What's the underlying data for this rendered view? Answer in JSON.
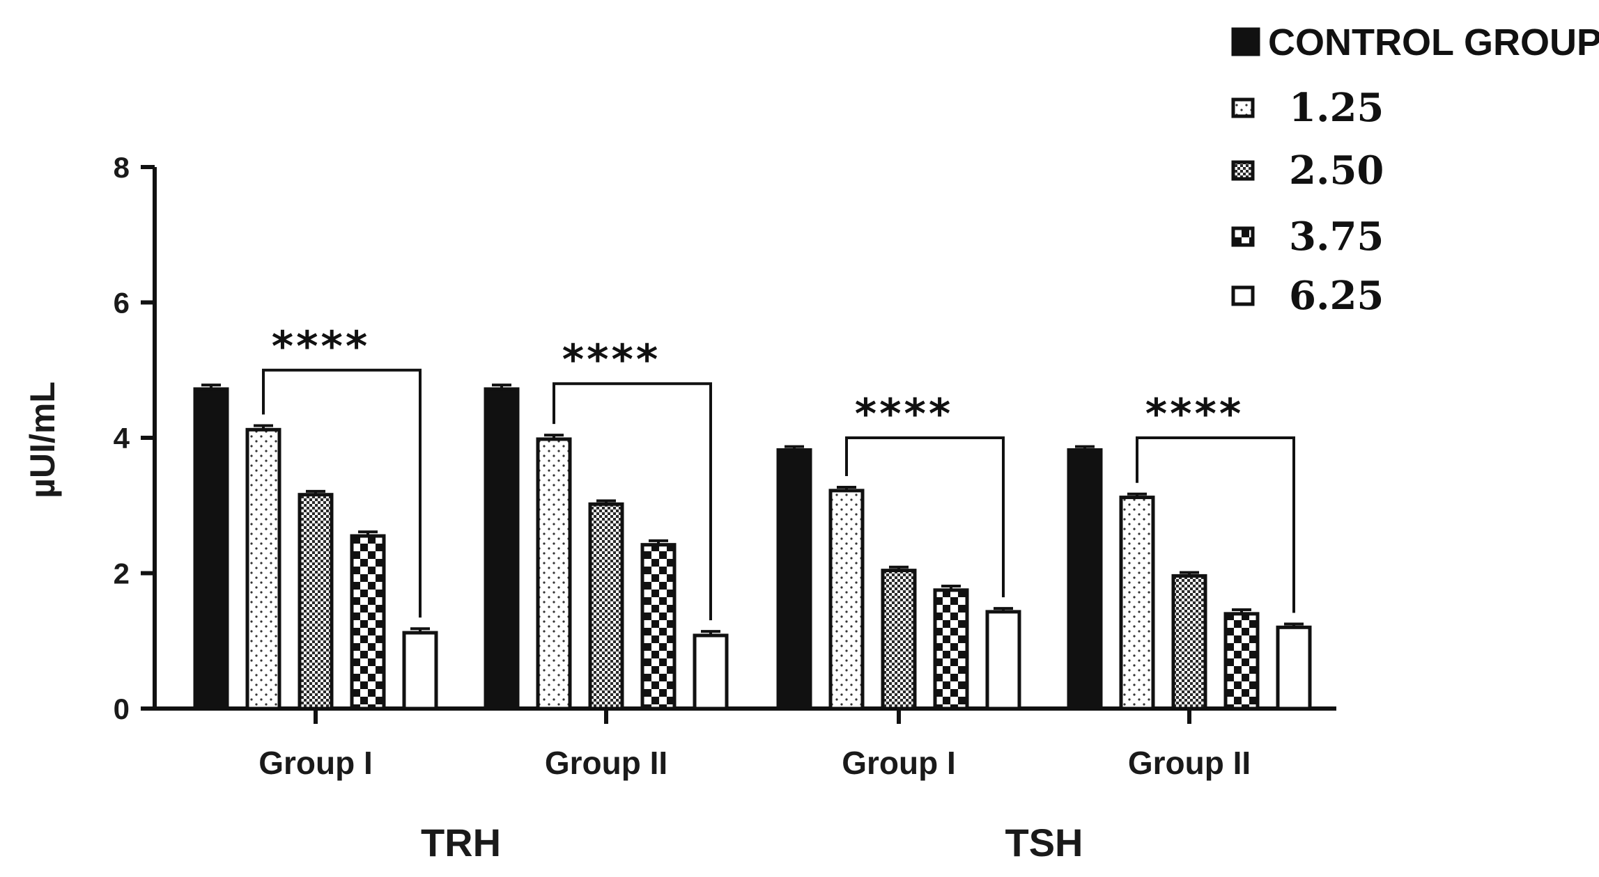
{
  "chart_data": {
    "type": "bar",
    "title": "",
    "ylabel": "µUI/mL",
    "xlabel": "",
    "ylim": [
      0,
      8
    ],
    "yticks": [
      0,
      2,
      4,
      6,
      8
    ],
    "super_categories": [
      {
        "label": "TRH",
        "groups": [
          "Group I",
          "Group II"
        ]
      },
      {
        "label": "TSH",
        "groups": [
          "Group I",
          "Group II"
        ]
      }
    ],
    "categories": [
      "Group I",
      "Group II",
      "Group I",
      "Group II"
    ],
    "series": [
      {
        "name": "CONTROL GROUP",
        "pattern": "solid",
        "values": [
          4.72,
          4.72,
          3.82,
          3.82
        ],
        "errors": [
          0.06,
          0.06,
          0.05,
          0.05
        ]
      },
      {
        "name": "1.25",
        "pattern": "dots",
        "values": [
          4.12,
          3.98,
          3.22,
          3.12
        ],
        "errors": [
          0.06,
          0.06,
          0.05,
          0.05
        ]
      },
      {
        "name": "2.50",
        "pattern": "fine-check",
        "values": [
          3.16,
          3.02,
          2.04,
          1.96
        ],
        "errors": [
          0.05,
          0.05,
          0.05,
          0.05
        ]
      },
      {
        "name": "3.75",
        "pattern": "checker",
        "values": [
          2.55,
          2.42,
          1.75,
          1.4
        ],
        "errors": [
          0.06,
          0.06,
          0.06,
          0.06
        ]
      },
      {
        "name": "6.25",
        "pattern": "open",
        "values": [
          1.12,
          1.08,
          1.43,
          1.2
        ],
        "errors": [
          0.06,
          0.06,
          0.05,
          0.05
        ]
      }
    ],
    "significance": [
      {
        "group": 0,
        "label": "****",
        "y": 5.0
      },
      {
        "group": 1,
        "label": "****",
        "y": 4.8
      },
      {
        "group": 2,
        "label": "****",
        "y": 4.0
      },
      {
        "group": 3,
        "label": "****",
        "y": 4.0
      }
    ],
    "legend_position": "top-right",
    "legend_title": "CONTROL GROUP"
  }
}
